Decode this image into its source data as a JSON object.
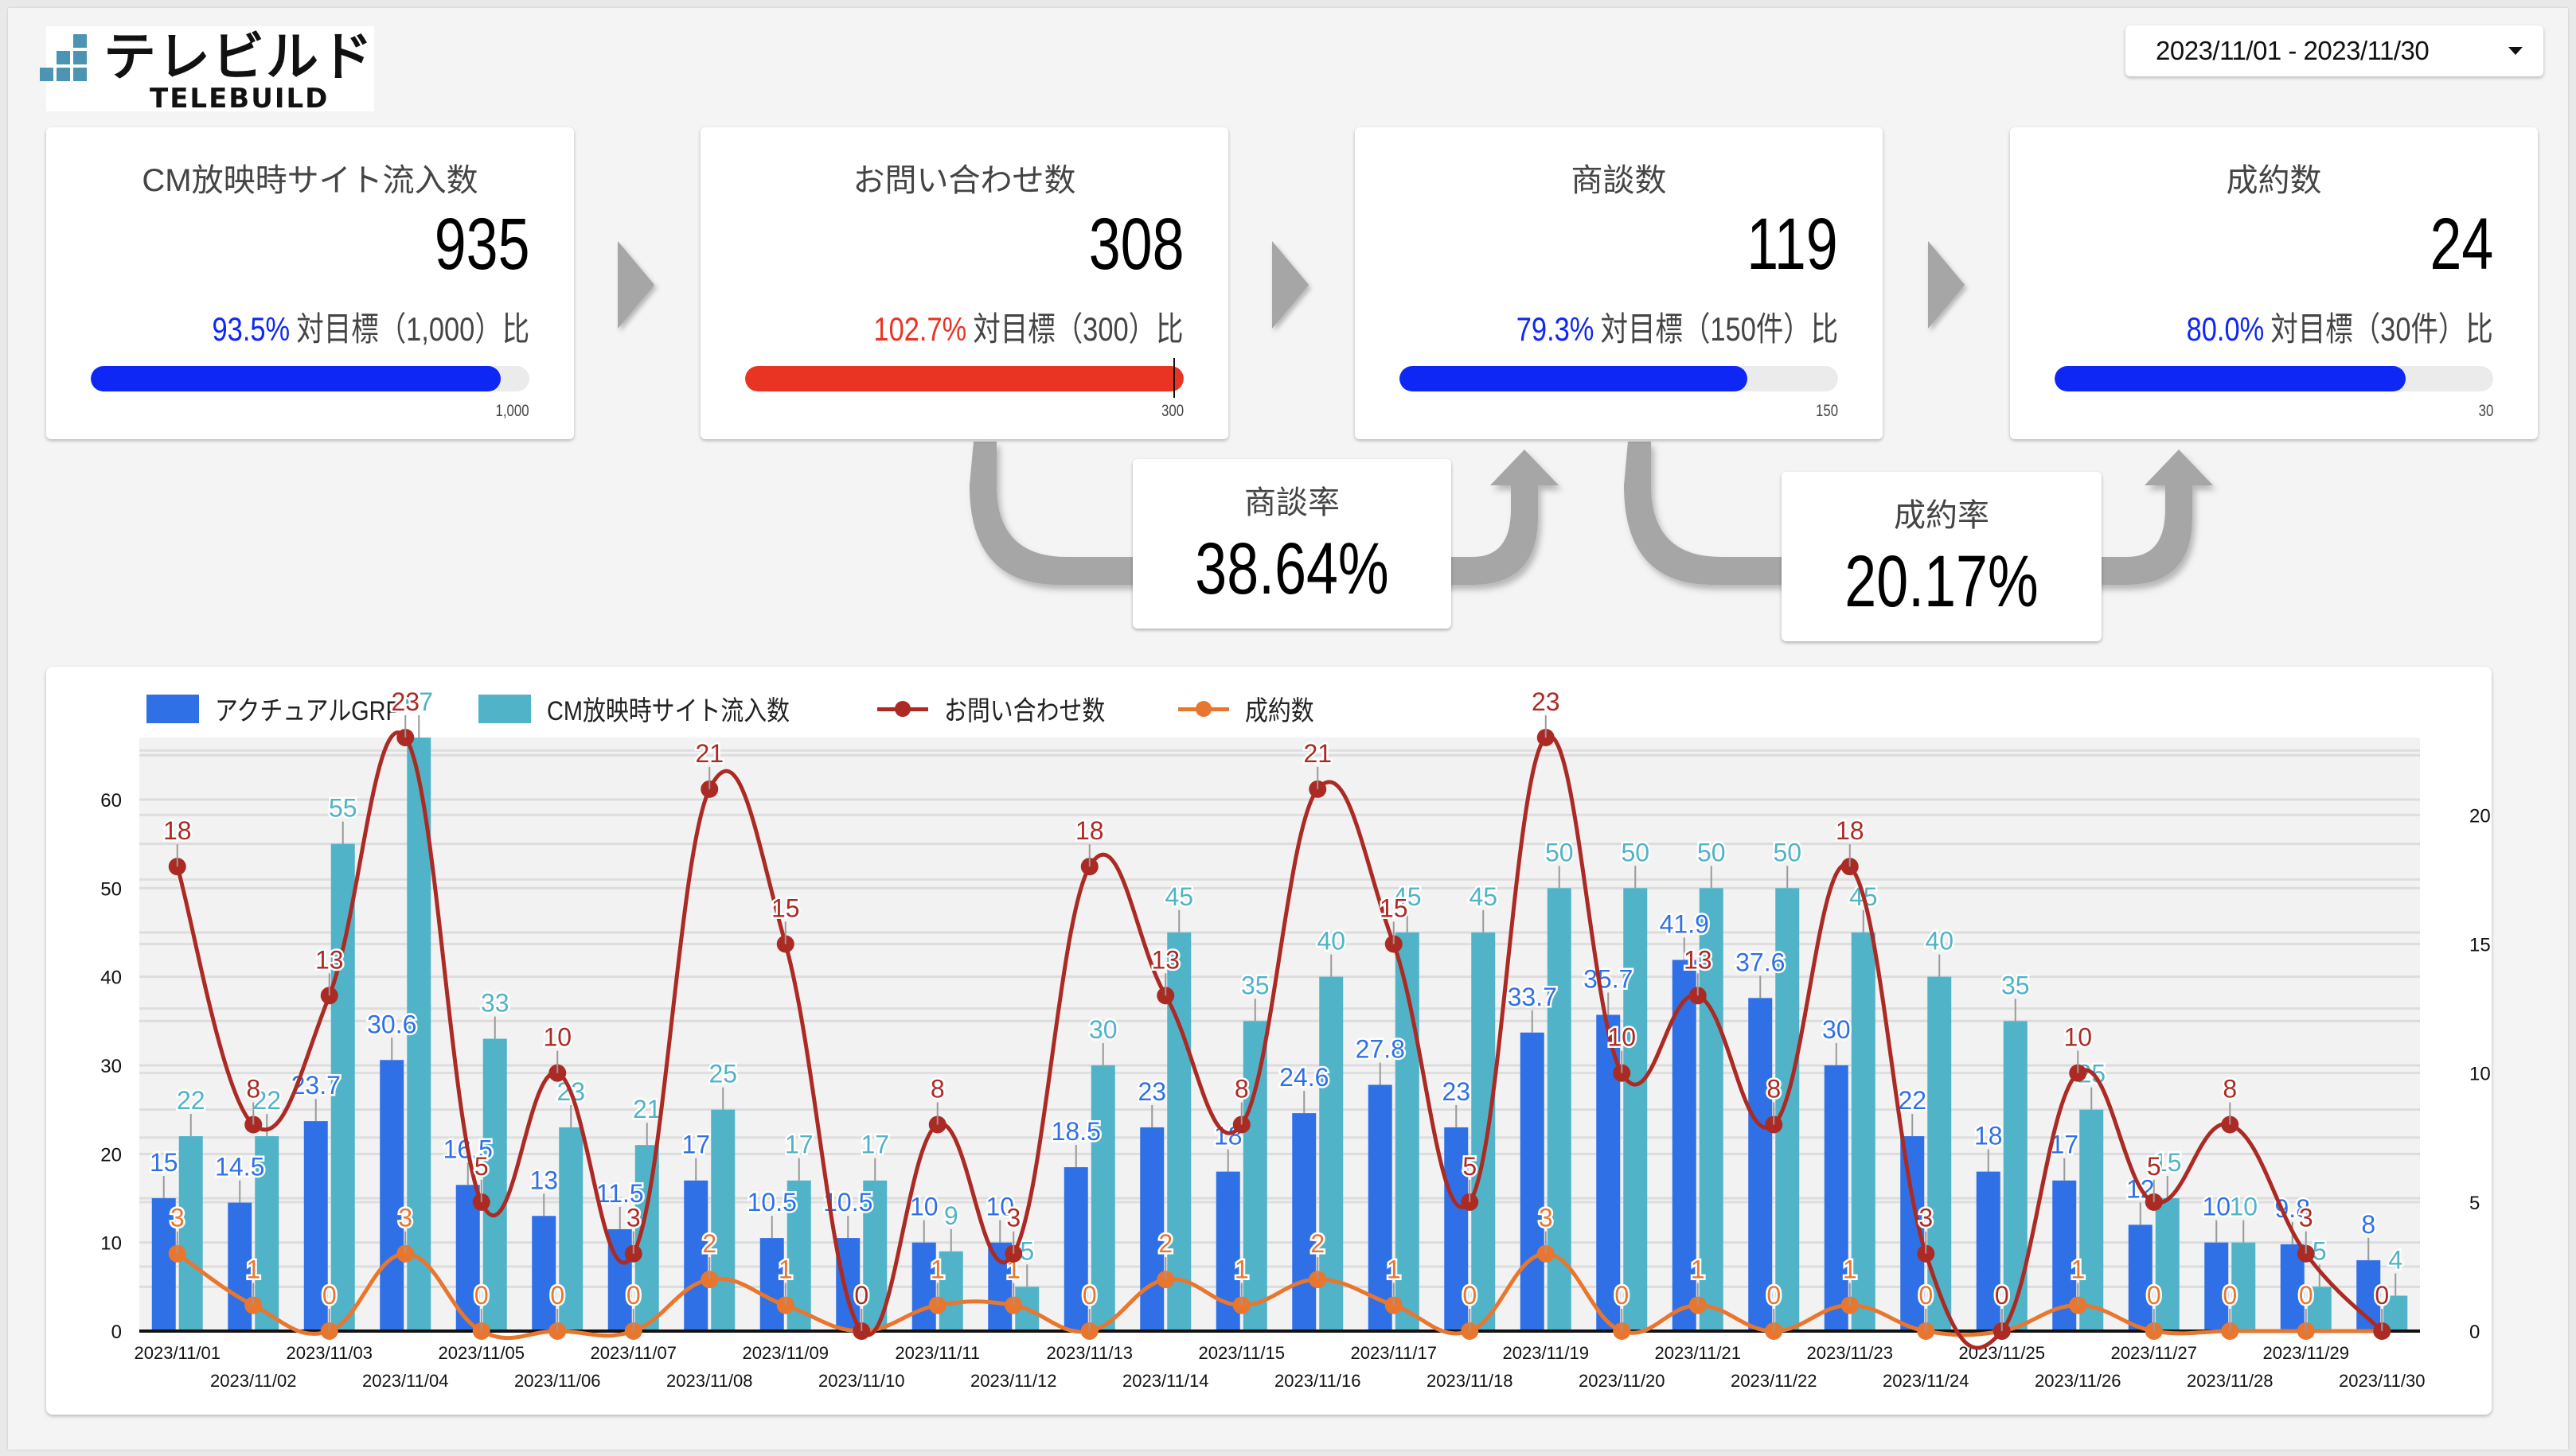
{
  "logo": {
    "jp": "テレビルド",
    "en": "TELEBUILD"
  },
  "date_range": {
    "value": "2023/11/01 - 2023/11/30",
    "icon": "caret-down-icon"
  },
  "kpis": [
    {
      "title": "CM放映時サイト流入数",
      "value": "935",
      "pct": "93.5%",
      "target_text": "対目標（1,000）比",
      "progress": 93.5,
      "max_label": "1,000",
      "color": "#0f27f5",
      "over_target": false
    },
    {
      "title": "お問い合わせ数",
      "value": "308",
      "pct": "102.7%",
      "target_text": "対目標（300）比",
      "progress": 100,
      "max_label": "300",
      "color": "#e93423",
      "over_target": true
    },
    {
      "title": "商談数",
      "value": "119",
      "pct": "79.3%",
      "target_text": "対目標（150件）比",
      "progress": 79.3,
      "max_label": "150",
      "color": "#0f27f5",
      "over_target": false
    },
    {
      "title": "成約数",
      "value": "24",
      "pct": "80.0%",
      "target_text": "対目標（30件）比",
      "progress": 80.0,
      "max_label": "30",
      "color": "#0f27f5",
      "over_target": false
    }
  ],
  "rates": [
    {
      "label": "商談率",
      "value": "38.64%"
    },
    {
      "label": "成約率",
      "value": "20.17%"
    }
  ],
  "legend": [
    {
      "label": "アクチュアルGRP",
      "type": "bar",
      "color": "#3070e6"
    },
    {
      "label": "CM放映時サイト流入数",
      "type": "bar",
      "color": "#50b3c8"
    },
    {
      "label": "お問い合わせ数",
      "type": "line",
      "color": "#ab2b24"
    },
    {
      "label": "成約数",
      "type": "line",
      "color": "#e9762f"
    }
  ],
  "chart_data": {
    "type": "bar",
    "title": "",
    "xlabel": "",
    "ylabel": "",
    "ylim": [
      0,
      67
    ],
    "y2lim": [
      0,
      23
    ],
    "yticks": [
      0,
      10,
      20,
      30,
      40,
      50,
      60
    ],
    "y2ticks": [
      0,
      5,
      10,
      15,
      20
    ],
    "grid": true,
    "legend_position": "top-left",
    "categories": [
      "2023/11/01",
      "2023/11/02",
      "2023/11/03",
      "2023/11/04",
      "2023/11/05",
      "2023/11/06",
      "2023/11/07",
      "2023/11/08",
      "2023/11/09",
      "2023/11/10",
      "2023/11/11",
      "2023/11/12",
      "2023/11/13",
      "2023/11/14",
      "2023/11/15",
      "2023/11/16",
      "2023/11/17",
      "2023/11/18",
      "2023/11/19",
      "2023/11/20",
      "2023/11/21",
      "2023/11/22",
      "2023/11/23",
      "2023/11/24",
      "2023/11/25",
      "2023/11/26",
      "2023/11/27",
      "2023/11/28",
      "2023/11/29",
      "2023/11/30"
    ],
    "series": [
      {
        "name": "アクチュアルGRP",
        "type": "bar",
        "axis": "left",
        "color": "#3070e6",
        "values": [
          15,
          14.5,
          23.7,
          30.6,
          16.5,
          13,
          11.5,
          17,
          10.5,
          10.5,
          10,
          10,
          18.5,
          23,
          18,
          24.6,
          27.8,
          23,
          33.7,
          35.7,
          41.9,
          37.6,
          30,
          22,
          18,
          17,
          12,
          10,
          9.8,
          8
        ]
      },
      {
        "name": "CM放映時サイト流入数",
        "type": "bar",
        "axis": "left",
        "color": "#50b3c8",
        "values": [
          22,
          22,
          55,
          67,
          33,
          23,
          21,
          25,
          17,
          17,
          9,
          5,
          30,
          45,
          35,
          40,
          45,
          45,
          50,
          50,
          50,
          50,
          45,
          40,
          35,
          25,
          15,
          10,
          5,
          4
        ]
      },
      {
        "name": "お問い合わせ数",
        "type": "line",
        "axis": "right",
        "color": "#ab2b24",
        "values": [
          18,
          8,
          13,
          23,
          5,
          10,
          3,
          21,
          15,
          0,
          8,
          3,
          18,
          13,
          8,
          21,
          15,
          5,
          23,
          10,
          13,
          8,
          18,
          3,
          0,
          10,
          5,
          8,
          3,
          0
        ]
      },
      {
        "name": "成約数",
        "type": "line",
        "axis": "right",
        "color": "#e9762f",
        "values": [
          3,
          1,
          0,
          3,
          0,
          0,
          0,
          2,
          1,
          0,
          1,
          1,
          0,
          2,
          1,
          2,
          1,
          0,
          3,
          0,
          1,
          0,
          1,
          0,
          0,
          1,
          0,
          0,
          0,
          0
        ]
      }
    ]
  }
}
